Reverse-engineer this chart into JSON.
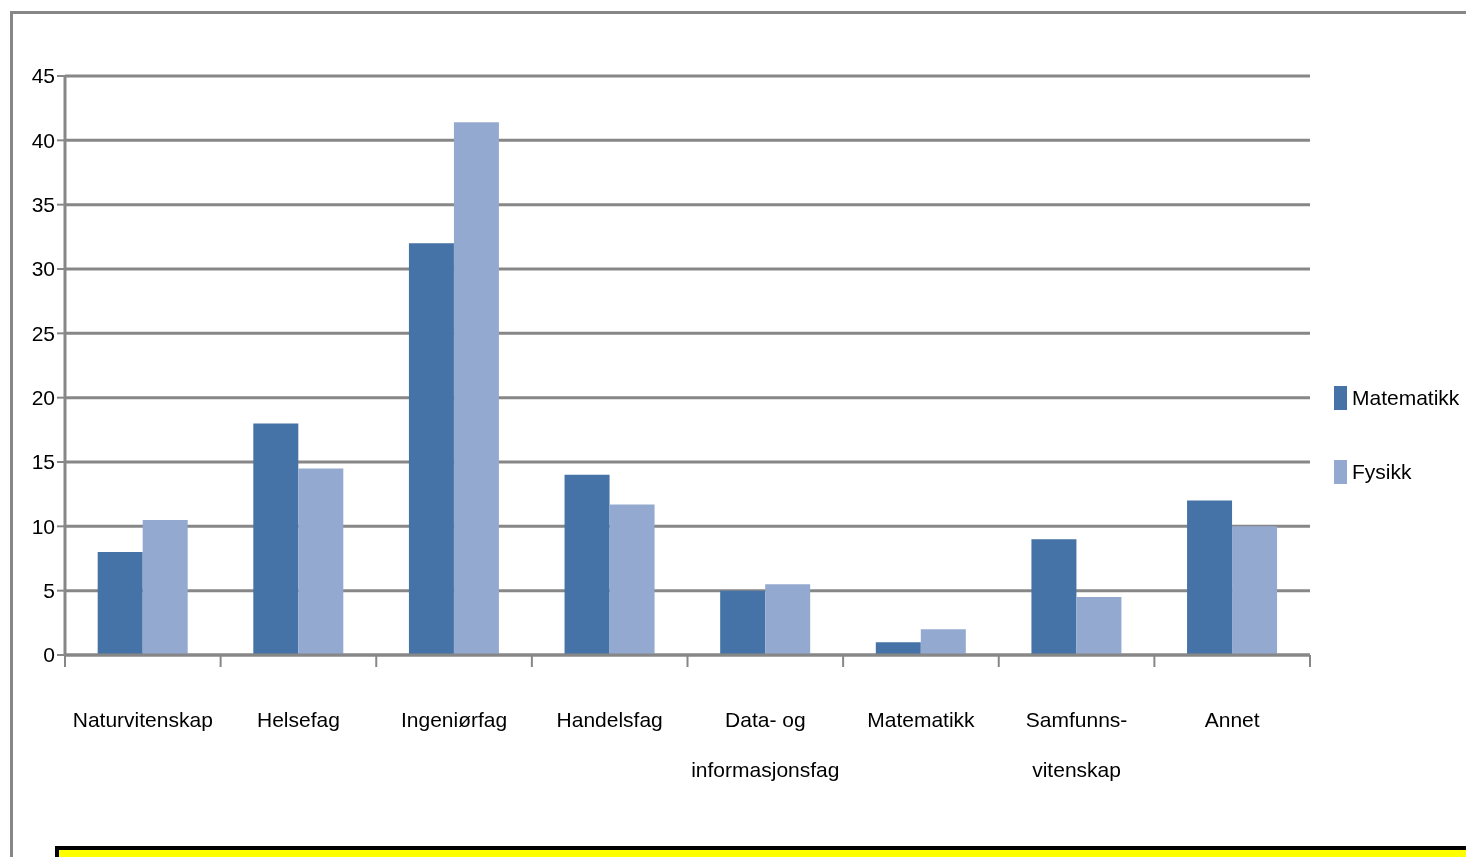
{
  "chart_data": {
    "type": "bar",
    "categories": [
      "Naturvitenskap",
      "Helsefag",
      "Ingeniørfag",
      "Handelsfag",
      "Data- og informasjonsfag",
      "Matematikk",
      "Samfunns-vitenskap",
      "Annet"
    ],
    "series": [
      {
        "name": "Matematikk",
        "color": "#4572a7",
        "values": [
          8,
          18,
          32,
          14,
          5,
          1,
          9,
          12
        ]
      },
      {
        "name": "Fysikk",
        "color": "#93a9cf",
        "values": [
          10.5,
          14.5,
          41.4,
          11.7,
          5.5,
          2,
          4.5,
          10
        ]
      }
    ],
    "ylim": [
      0,
      45
    ],
    "yticks": [
      0,
      5,
      10,
      15,
      20,
      25,
      30,
      35,
      40,
      45
    ],
    "grid": "y",
    "legend": "right"
  }
}
